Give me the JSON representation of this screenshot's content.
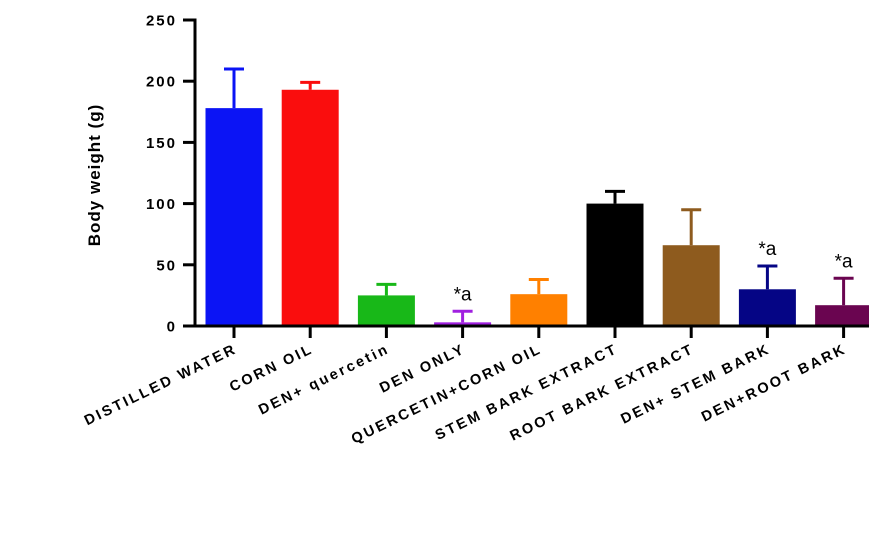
{
  "chart_data": {
    "type": "bar",
    "ylabel": "Body weight (g)",
    "xlabel": "",
    "ylim": [
      0,
      250
    ],
    "yticks": [
      "0",
      "50",
      "100",
      "150",
      "200",
      "250"
    ],
    "grid": false,
    "legend": "none",
    "categories": [
      "DISTILLED WATER",
      "CORN OIL",
      "DEN+ quercetin",
      "DEN ONLY",
      "QUERCETIN+CORN OIL",
      "STEM BARK EXTRACT",
      "ROOT BARK EXTRACT",
      "DEN+ STEM BARK",
      "DEN+ROOT BARK"
    ],
    "values": [
      178,
      193,
      25,
      3,
      26,
      100,
      66,
      30,
      17
    ],
    "error": [
      32,
      6,
      9,
      9,
      12,
      10,
      29,
      19,
      22
    ],
    "colors": [
      "#0b14f5",
      "#fa0d0d",
      "#18b818",
      "#a020e0",
      "#ff8000",
      "#000000",
      "#8e5b1e",
      "#050585",
      "#6a0550"
    ],
    "annotations": [
      {
        "category": "DEN ONLY",
        "text": "*a"
      },
      {
        "category": "DEN+ STEM BARK",
        "text": "*a"
      },
      {
        "category": "DEN+ROOT BARK",
        "text": "*a"
      }
    ]
  }
}
